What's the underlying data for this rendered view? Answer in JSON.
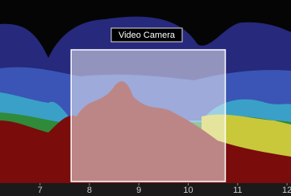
{
  "chart_data": {
    "type": "spectrogram",
    "xlim": [
      6.19,
      12.08
    ],
    "xticks": [
      7,
      8,
      9,
      10,
      11,
      12
    ],
    "selection": {
      "label": "Video Camera",
      "start": 7.63,
      "end": 10.75
    }
  }
}
